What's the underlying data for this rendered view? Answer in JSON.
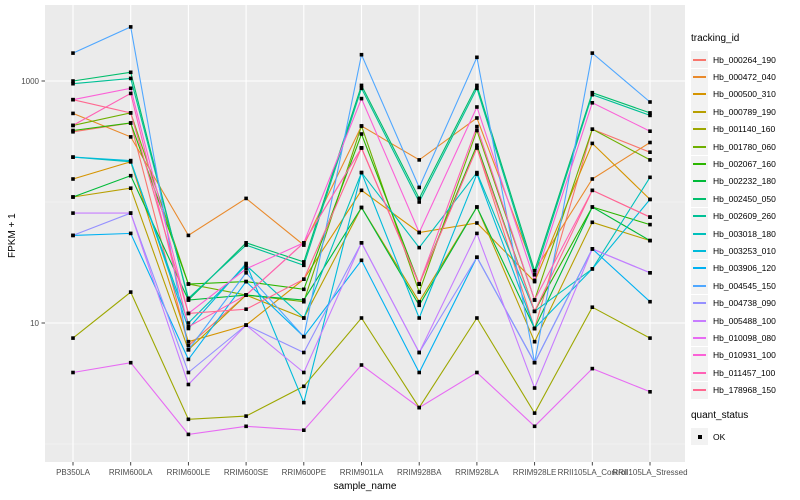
{
  "colors": {
    "page_bg": "#FFFFFF",
    "panel_bg": "#EBEBEB",
    "grid_major": "#FFFFFF",
    "grid_minor": "rgba(255,255,255,0.55)",
    "tick_mark": "#333333",
    "tick_label": "#4D4D4D",
    "axis_title": "#000000",
    "legend_key_bg": "#F2F2F2",
    "point": "#000000"
  },
  "chart_data": {
    "type": "line",
    "title": "",
    "xlabel": "sample_name",
    "ylabel": "FPKM + 1",
    "y_scale": "log10",
    "y_axis_ticks": [
      10,
      1000
    ],
    "y_minor_gridlines": [
      1,
      100
    ],
    "ylim": [
      0.7,
      4300
    ],
    "grid": true,
    "legend_position": "right",
    "legend_title": "tracking_id",
    "quant_legend": {
      "title": "quant_status",
      "label": "OK",
      "marker": "black-square"
    },
    "marker": {
      "shape": "square",
      "color": "#000000",
      "size": 3.6
    },
    "categories": [
      "PB350LA",
      "RRIM600LA",
      "RRIM600LE",
      "RRIM600SE",
      "RRIM600PE",
      "RRIM901LA",
      "RRIM928BA",
      "RRIM928LA",
      "RRIM928LE",
      "RRII105LA_Control",
      "RRII105LA_Stressed"
    ],
    "series": [
      {
        "name": "Hb_000264_190",
        "color": "#F8766D",
        "values": [
          380,
          450,
          6.5,
          17,
          46,
          280,
          21,
          280,
          9,
          400,
          258
        ]
      },
      {
        "name": "Hb_000472_040",
        "color": "#E98A2C",
        "values": [
          540,
          345,
          53,
          107,
          44,
          425,
          223,
          495,
          27,
          155,
          310
        ]
      },
      {
        "name": "Hb_000500_310",
        "color": "#D59400",
        "values": [
          155,
          215,
          7,
          9.6,
          23,
          125,
          56,
          67,
          22,
          305,
          105
        ]
      },
      {
        "name": "Hb_000789_190",
        "color": "#B79F00",
        "values": [
          110,
          130,
          6,
          17,
          11,
          90,
          15,
          91,
          7,
          68,
          48
        ]
      },
      {
        "name": "Hb_001140_160",
        "color": "#9DA700",
        "values": [
          7.5,
          18,
          1.6,
          1.7,
          3.0,
          11,
          2.0,
          11,
          1.8,
          13.5,
          7.5
        ]
      },
      {
        "name": "Hb_001780_060",
        "color": "#6FAF00",
        "values": [
          430,
          545,
          21,
          17,
          15,
          425,
          18,
          390,
          15.5,
          400,
          223
        ]
      },
      {
        "name": "Hb_002067_160",
        "color": "#2CB600",
        "values": [
          390,
          450,
          21,
          22,
          19,
          365,
          21,
          295,
          12.5,
          91,
          65
        ]
      },
      {
        "name": "Hb_002232_180",
        "color": "#00BA38",
        "values": [
          110,
          165,
          15.5,
          17,
          15.5,
          90,
          14,
          91,
          9,
          91,
          48
        ]
      },
      {
        "name": "Hb_002450_050",
        "color": "#00BE6C",
        "values": [
          1000,
          1180,
          15.5,
          46,
          32,
          920,
          107,
          920,
          27,
          800,
          545
        ]
      },
      {
        "name": "Hb_002609_260",
        "color": "#00C096",
        "values": [
          950,
          1050,
          16,
          44,
          30,
          870,
          100,
          870,
          25,
          770,
          520
        ]
      },
      {
        "name": "Hb_003018_180",
        "color": "#00C0BB",
        "values": [
          235,
          215,
          10,
          30,
          11,
          175,
          42,
          175,
          12.5,
          28,
          160
        ]
      },
      {
        "name": "Hb_003253_010",
        "color": "#00BBDA",
        "values": [
          235,
          220,
          9,
          31,
          2.2,
          175,
          11,
          170,
          9,
          28,
          105
        ]
      },
      {
        "name": "Hb_003906_120",
        "color": "#00B1F2",
        "values": [
          53,
          55,
          5,
          22,
          7.7,
          33,
          3.9,
          35,
          4.7,
          41,
          15
        ]
      },
      {
        "name": "Hb_004545_150",
        "color": "#4FA7FF",
        "values": [
          1700,
          2800,
          6,
          26,
          7.7,
          1650,
          132,
          1570,
          4.7,
          1700,
          670
        ]
      },
      {
        "name": "Hb_004738_090",
        "color": "#9590FF",
        "values": [
          53,
          81,
          3.9,
          9.6,
          5.7,
          46,
          5.7,
          35,
          4.7,
          41,
          26
        ]
      },
      {
        "name": "Hb_005488_100",
        "color": "#C77CFF",
        "values": [
          81,
          81,
          3.1,
          9.6,
          3.9,
          46,
          5.7,
          55,
          2.9,
          41,
          26
        ]
      },
      {
        "name": "Hb_010098_080",
        "color": "#E76BF3",
        "values": [
          3.9,
          4.7,
          1.2,
          1.4,
          1.3,
          4.5,
          2.0,
          3.9,
          1.4,
          4.2,
          2.7
        ]
      },
      {
        "name": "Hb_010931_100",
        "color": "#FB61D7",
        "values": [
          700,
          870,
          12,
          28,
          46,
          715,
          56,
          610,
          22.5,
          660,
          385
        ]
      },
      {
        "name": "Hb_011457_100",
        "color": "#FF61B6",
        "values": [
          430,
          790,
          9.3,
          17,
          46,
          280,
          21,
          420,
          15.5,
          125,
          75
        ]
      },
      {
        "name": "Hb_178968_150",
        "color": "#FF6890",
        "values": [
          700,
          545,
          12,
          13,
          23,
          280,
          21,
          280,
          12.5,
          125,
          75
        ]
      }
    ]
  }
}
